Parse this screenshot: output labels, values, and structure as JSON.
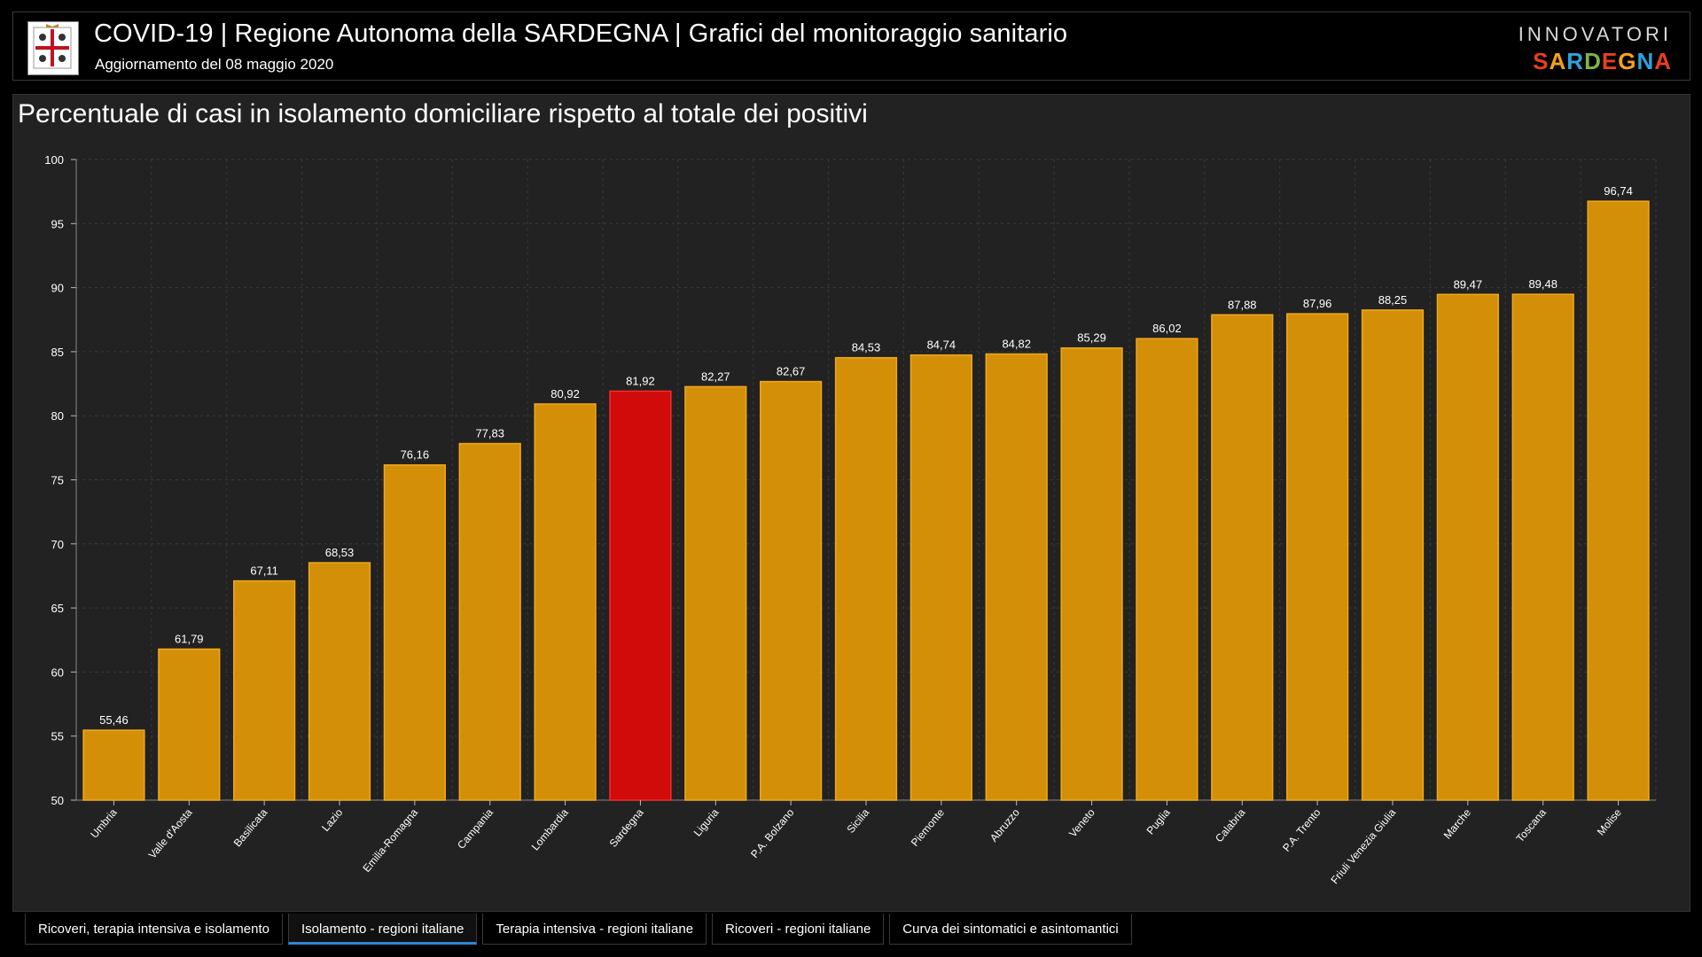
{
  "header": {
    "title": "COVID-19 | Regione Autonoma della SARDEGNA | Grafici del monitoraggio sanitario",
    "subtitle": "Aggiornamento del 08 maggio 2020",
    "brand_top": "INNOVATORI",
    "brand_bottom": "SARDEGNA",
    "brand_colors": [
      "#e8401c",
      "#f5a21b",
      "#2ea3dc",
      "#7ab648",
      "#e8401c",
      "#f5a21b",
      "#2ea3dc",
      "#e8401c"
    ]
  },
  "logo": {
    "icon": "sardinia-coat-of-arms-icon"
  },
  "chart_title": "Percentuale di casi in isolamento domiciliare rispetto al totale dei positivi",
  "colors": {
    "bar": "#d48f08",
    "bar_border": "#f0a81e",
    "highlight": "#d10a0a",
    "highlight_border": "#ff2a2a",
    "grid": "#3a3a3a"
  },
  "chart_data": {
    "type": "bar",
    "title": "Percentuale di casi in isolamento domiciliare rispetto al totale dei positivi",
    "xlabel": "",
    "ylabel": "",
    "ylim": [
      50,
      100
    ],
    "yticks": [
      50,
      55,
      60,
      65,
      70,
      75,
      80,
      85,
      90,
      95,
      100
    ],
    "grid": true,
    "highlight_category": "Sardegna",
    "categories": [
      "Umbria",
      "Valle d'Aosta",
      "Basilicata",
      "Lazio",
      "Emilia-Romagna",
      "Campania",
      "Lombardia",
      "Sardegna",
      "Liguria",
      "P.A. Bolzano",
      "Sicilia",
      "Piemonte",
      "Abruzzo",
      "Veneto",
      "Puglia",
      "Calabria",
      "P.A. Trento",
      "Friuli Venezia Giulia",
      "Marche",
      "Toscana",
      "Molise"
    ],
    "values": [
      55.46,
      61.79,
      67.11,
      68.53,
      76.16,
      77.83,
      80.92,
      81.92,
      82.27,
      82.67,
      84.53,
      84.74,
      84.82,
      85.29,
      86.02,
      87.88,
      87.96,
      88.25,
      89.47,
      89.48,
      96.74
    ],
    "value_labels": [
      "55,46",
      "61,79",
      "67,11",
      "68,53",
      "76,16",
      "77,83",
      "80,92",
      "81,92",
      "82,27",
      "82,67",
      "84,53",
      "84,74",
      "84,82",
      "85,29",
      "86,02",
      "87,88",
      "87,96",
      "88,25",
      "89,47",
      "89,48",
      "96,74"
    ]
  },
  "tabs": [
    {
      "label": "Ricoveri, terapia intensiva e isolamento",
      "active": false
    },
    {
      "label": "Isolamento - regioni italiane",
      "active": true
    },
    {
      "label": "Terapia intensiva - regioni italiane",
      "active": false
    },
    {
      "label": "Ricoveri - regioni italiane",
      "active": false
    },
    {
      "label": "Curva dei sintomatici e asintomantici",
      "active": false
    }
  ]
}
